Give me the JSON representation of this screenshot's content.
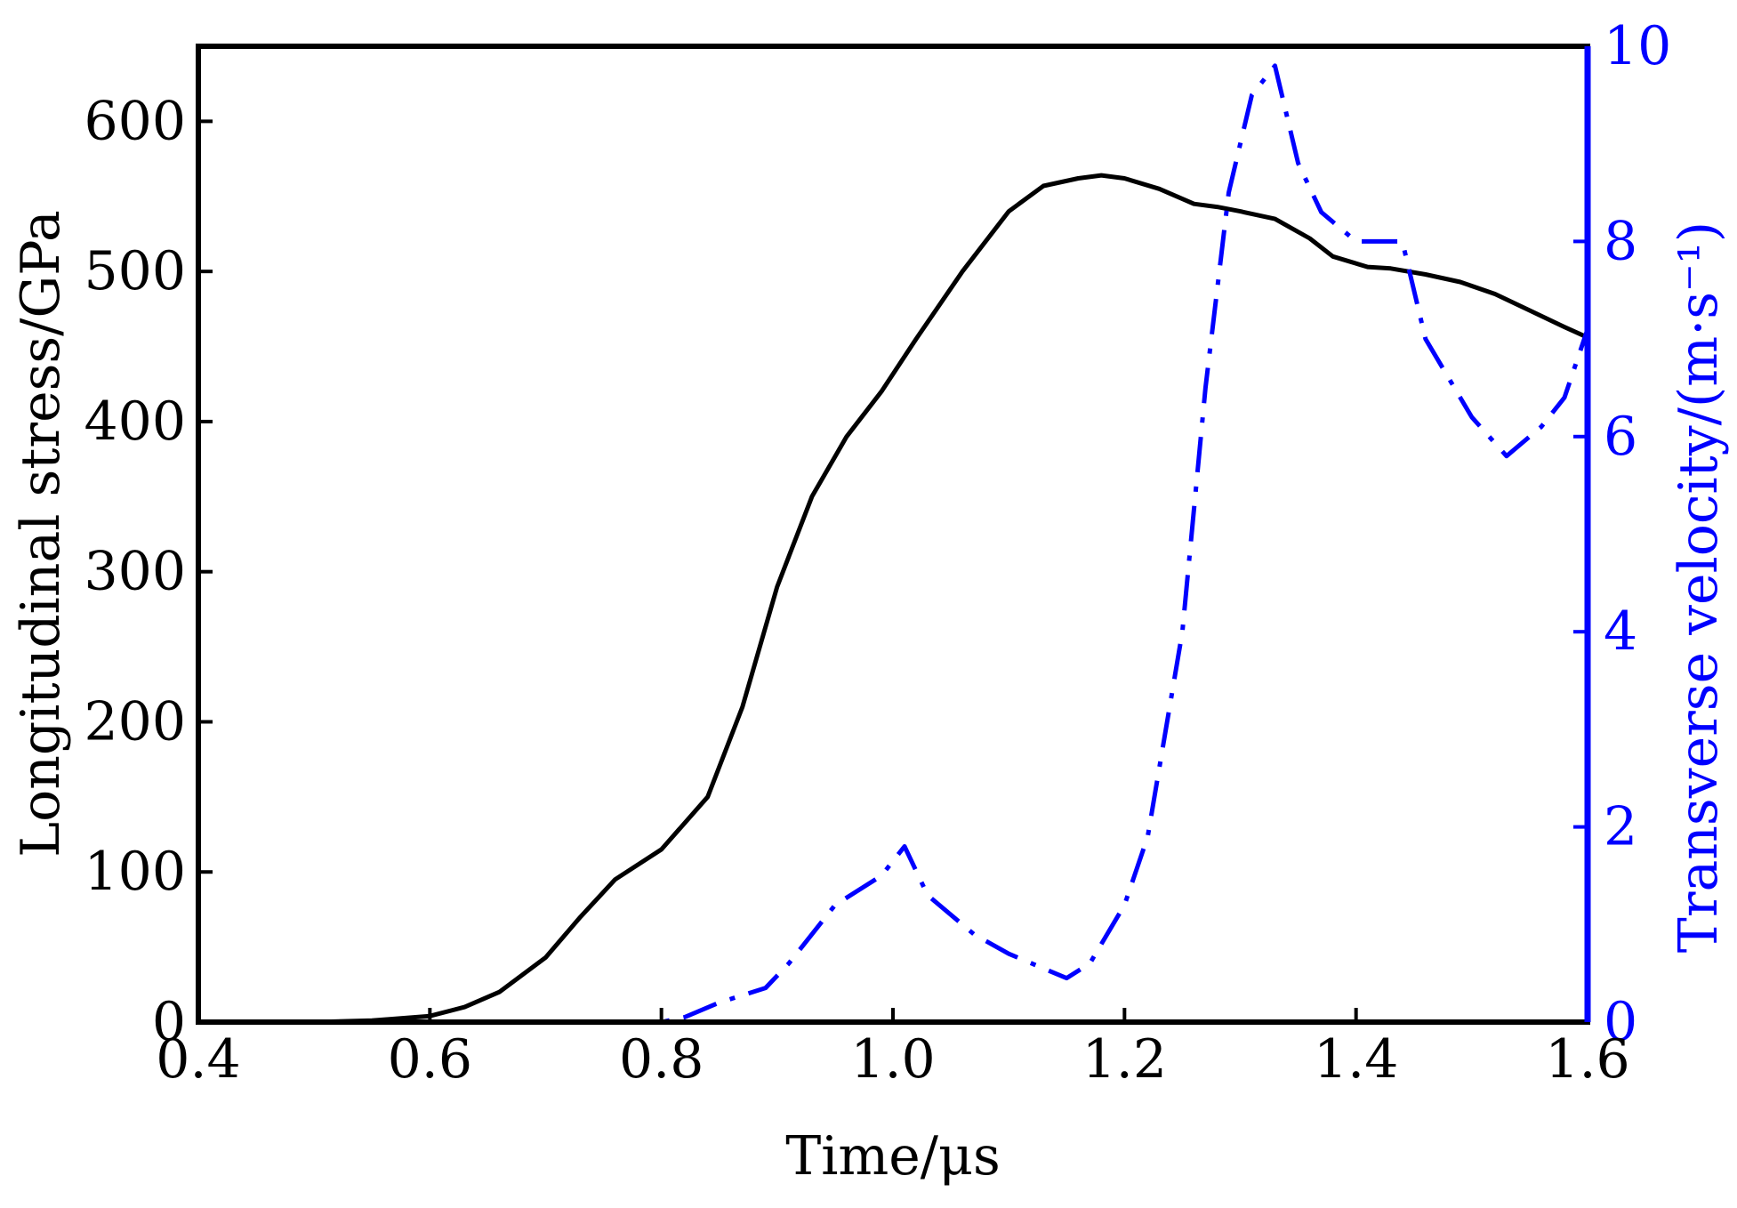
{
  "chart_data": {
    "type": "line",
    "xlabel": "Time/μs",
    "ylabel_left": "Longitudinal stress/GPa",
    "ylabel_right": "Transverse velocity/(m·s⁻¹)",
    "xlim": [
      0.4,
      1.6
    ],
    "ylim_left": [
      0,
      650
    ],
    "ylim_right": [
      0,
      10
    ],
    "x_ticks": [
      "0.4",
      "0.6",
      "0.8",
      "1.0",
      "1.2",
      "1.4",
      "1.6"
    ],
    "y_left_ticks": [
      "0",
      "100",
      "200",
      "300",
      "400",
      "500",
      "600"
    ],
    "y_right_ticks": [
      "0",
      "2",
      "4",
      "6",
      "8",
      "10"
    ],
    "grid": false,
    "colors": {
      "left_series": "#000000",
      "right_series": "#0000ff",
      "right_axis": "#0000ff"
    },
    "series": [
      {
        "axis": "left",
        "style": "solid",
        "x": [
          0.4,
          0.5,
          0.55,
          0.6,
          0.63,
          0.66,
          0.7,
          0.73,
          0.76,
          0.8,
          0.84,
          0.87,
          0.9,
          0.93,
          0.96,
          0.99,
          1.02,
          1.06,
          1.1,
          1.13,
          1.16,
          1.18,
          1.2,
          1.23,
          1.26,
          1.28,
          1.3,
          1.33,
          1.36,
          1.38,
          1.41,
          1.43,
          1.46,
          1.49,
          1.52,
          1.55,
          1.58,
          1.6
        ],
        "values": [
          0,
          0,
          1,
          4,
          10,
          20,
          43,
          70,
          95,
          115,
          150,
          210,
          290,
          350,
          390,
          420,
          455,
          500,
          540,
          557,
          562,
          564,
          562,
          555,
          545,
          543,
          540,
          535,
          522,
          510,
          503,
          502,
          498,
          493,
          485,
          474,
          463,
          456
        ]
      },
      {
        "axis": "right",
        "style": "dash-dot",
        "x": [
          0.4,
          0.55,
          0.7,
          0.8,
          0.82,
          0.85,
          0.89,
          0.91,
          0.95,
          0.99,
          1.01,
          1.03,
          1.07,
          1.1,
          1.15,
          1.17,
          1.2,
          1.22,
          1.25,
          1.27,
          1.29,
          1.31,
          1.33,
          1.35,
          1.37,
          1.4,
          1.42,
          1.44,
          1.46,
          1.5,
          1.53,
          1.56,
          1.58,
          1.6
        ],
        "values": [
          0,
          0,
          0,
          0,
          0.05,
          0.2,
          0.35,
          0.6,
          1.2,
          1.5,
          1.8,
          1.3,
          0.9,
          0.7,
          0.45,
          0.6,
          1.2,
          1.9,
          4.0,
          6.5,
          8.5,
          9.5,
          9.8,
          8.8,
          8.3,
          8.0,
          8.0,
          8.0,
          7.0,
          6.2,
          5.8,
          6.1,
          6.4,
          7.1
        ]
      }
    ]
  }
}
